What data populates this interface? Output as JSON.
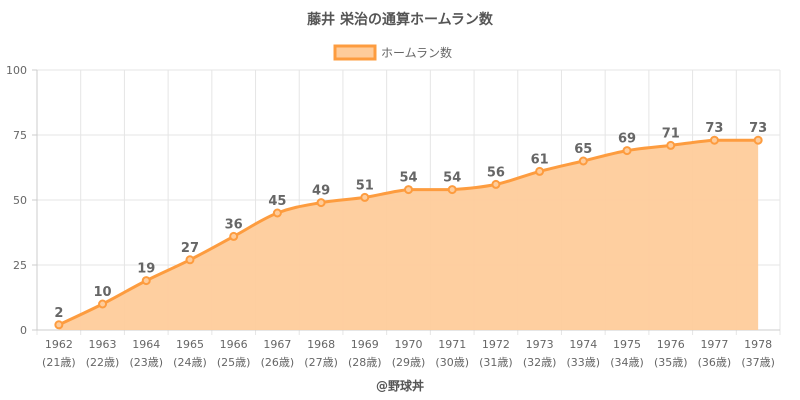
{
  "chart_data": {
    "type": "area",
    "title": "藤井 栄治の通算ホームラン数",
    "series": [
      {
        "name": "ホームラン数",
        "values": [
          2,
          10,
          19,
          27,
          36,
          45,
          49,
          51,
          54,
          54,
          56,
          61,
          65,
          69,
          71,
          73,
          73
        ]
      }
    ],
    "categories": [
      "1962",
      "1963",
      "1964",
      "1965",
      "1966",
      "1967",
      "1968",
      "1969",
      "1970",
      "1971",
      "1972",
      "1973",
      "1974",
      "1975",
      "1976",
      "1977",
      "1978"
    ],
    "category_sublabels": [
      "(21歳)",
      "(22歳)",
      "(23歳)",
      "(24歳)",
      "(25歳)",
      "(26歳)",
      "(27歳)",
      "(28歳)",
      "(29歳)",
      "(30歳)",
      "(31歳)",
      "(32歳)",
      "(33歳)",
      "(34歳)",
      "(35歳)",
      "(36歳)",
      "(37歳)"
    ],
    "ylim": [
      0,
      100
    ],
    "yticks": [
      0,
      25,
      50,
      75,
      100
    ],
    "grid": true,
    "legend_position": "top-center",
    "colors": {
      "line": "#fd9c3f",
      "fill": "#fecc9b",
      "grid": "#e5e5e5",
      "axis": "#cccccc"
    }
  },
  "footer": "@野球丼"
}
